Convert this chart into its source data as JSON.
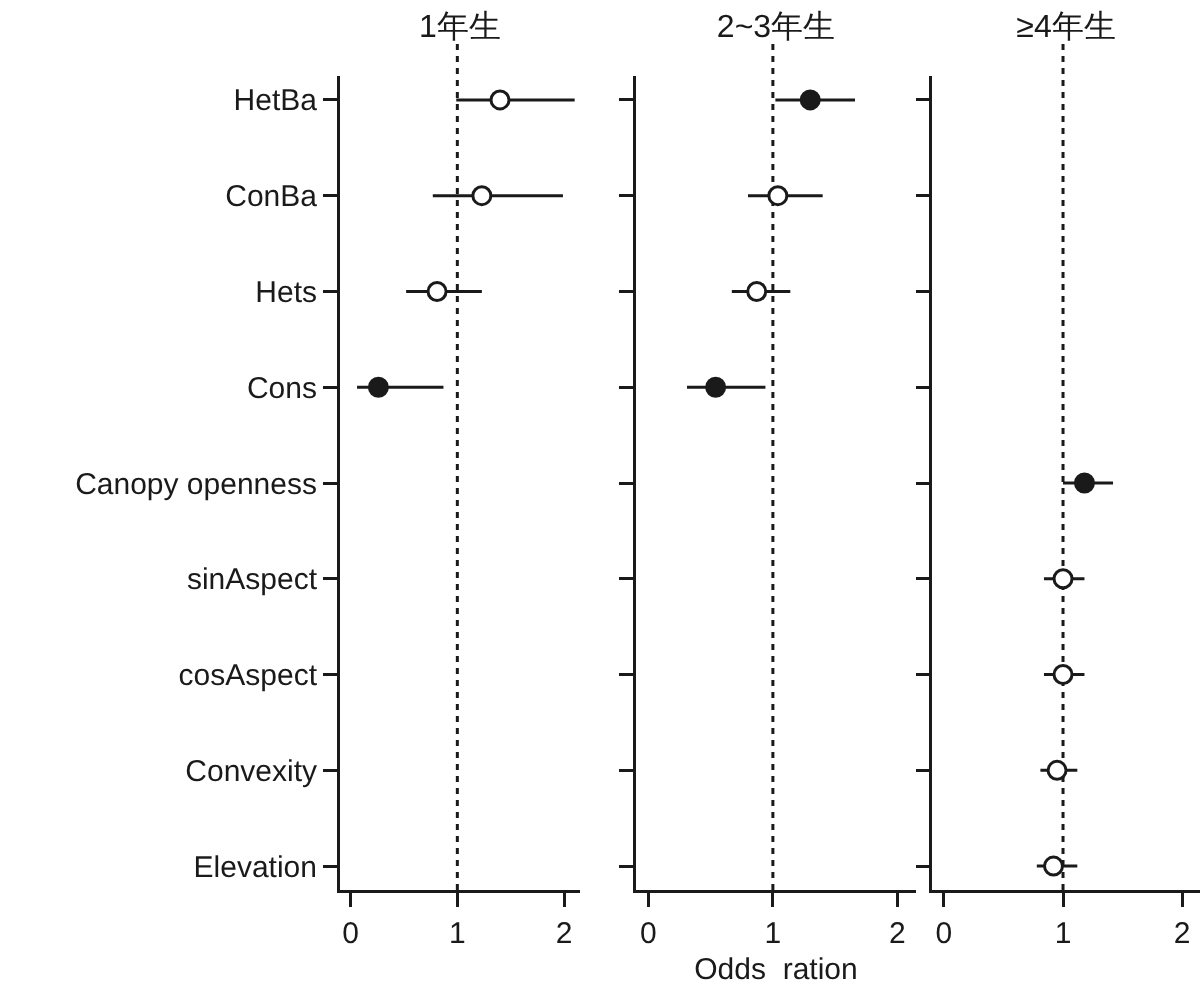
{
  "chart_data": [
    {
      "type": "scatter",
      "title": "1年生",
      "orientation": "horizontal",
      "categories": [
        "HetBa",
        "ConBa",
        "Hets",
        "Cons",
        "Canopy openness",
        "sinAspect",
        "cosAspect",
        "Convexity",
        "Elevation"
      ],
      "xlim": [
        -0.1,
        2.15
      ],
      "xticks": [
        0,
        1,
        2
      ],
      "marker": "circle",
      "grid": false,
      "series": [
        {
          "color": "#ffffff",
          "values": [
            1.4,
            1.23,
            0.81,
            null,
            null,
            null,
            null,
            null,
            null
          ],
          "errors": [
            [
              0.99,
              2.1
            ],
            [
              0.77,
              1.99
            ],
            [
              0.52,
              1.23
            ],
            null,
            null,
            null,
            null,
            null,
            null
          ]
        },
        {
          "color": "#1a1a1a",
          "values": [
            null,
            null,
            null,
            0.26,
            null,
            null,
            null,
            null,
            null
          ],
          "errors": [
            null,
            null,
            null,
            [
              0.06,
              0.87
            ],
            null,
            null,
            null,
            null,
            null
          ]
        }
      ],
      "ref_lines": [
        {
          "axis": "x",
          "value": 1,
          "line_style": "dotted"
        }
      ]
    },
    {
      "type": "scatter",
      "title": "2~3年生",
      "xlabel": "Odds  ration",
      "orientation": "horizontal",
      "categories": [
        null,
        null,
        null,
        null,
        null,
        null,
        null,
        null,
        null
      ],
      "xlim": [
        -0.1,
        2.15
      ],
      "xticks": [
        0,
        1,
        2
      ],
      "marker": "circle",
      "grid": false,
      "series": [
        {
          "color": "#ffffff",
          "values": [
            null,
            1.04,
            0.87,
            null,
            null,
            null,
            null,
            null,
            null
          ],
          "errors": [
            null,
            [
              0.8,
              1.4
            ],
            [
              0.67,
              1.14
            ],
            null,
            null,
            null,
            null,
            null,
            null
          ]
        },
        {
          "color": "#1a1a1a",
          "values": [
            1.3,
            null,
            null,
            0.54,
            null,
            null,
            null,
            null,
            null
          ],
          "errors": [
            [
              1.02,
              1.66
            ],
            null,
            null,
            [
              0.31,
              0.94
            ],
            null,
            null,
            null,
            null,
            null
          ]
        }
      ],
      "ref_lines": [
        {
          "axis": "x",
          "value": 1,
          "line_style": "dotted"
        }
      ]
    },
    {
      "type": "scatter",
      "title": "≥4年生",
      "orientation": "horizontal",
      "categories": [
        null,
        null,
        null,
        null,
        null,
        null,
        null,
        null,
        null
      ],
      "xlim": [
        -0.1,
        2.15
      ],
      "xticks": [
        0,
        1,
        2
      ],
      "marker": "circle",
      "grid": false,
      "series": [
        {
          "color": "#ffffff",
          "values": [
            null,
            null,
            null,
            null,
            null,
            1.0,
            1.0,
            0.95,
            0.92
          ],
          "errors": [
            null,
            null,
            null,
            null,
            null,
            [
              0.84,
              1.18
            ],
            [
              0.84,
              1.18
            ],
            [
              0.81,
              1.12
            ],
            [
              0.78,
              1.12
            ]
          ]
        },
        {
          "color": "#1a1a1a",
          "values": [
            null,
            null,
            null,
            null,
            1.18,
            null,
            null,
            null,
            null
          ],
          "errors": [
            null,
            null,
            null,
            null,
            [
              1.0,
              1.42
            ],
            null,
            null,
            null,
            null
          ]
        }
      ],
      "ref_lines": [
        {
          "axis": "x",
          "value": 1,
          "line_style": "dotted"
        }
      ]
    }
  ]
}
